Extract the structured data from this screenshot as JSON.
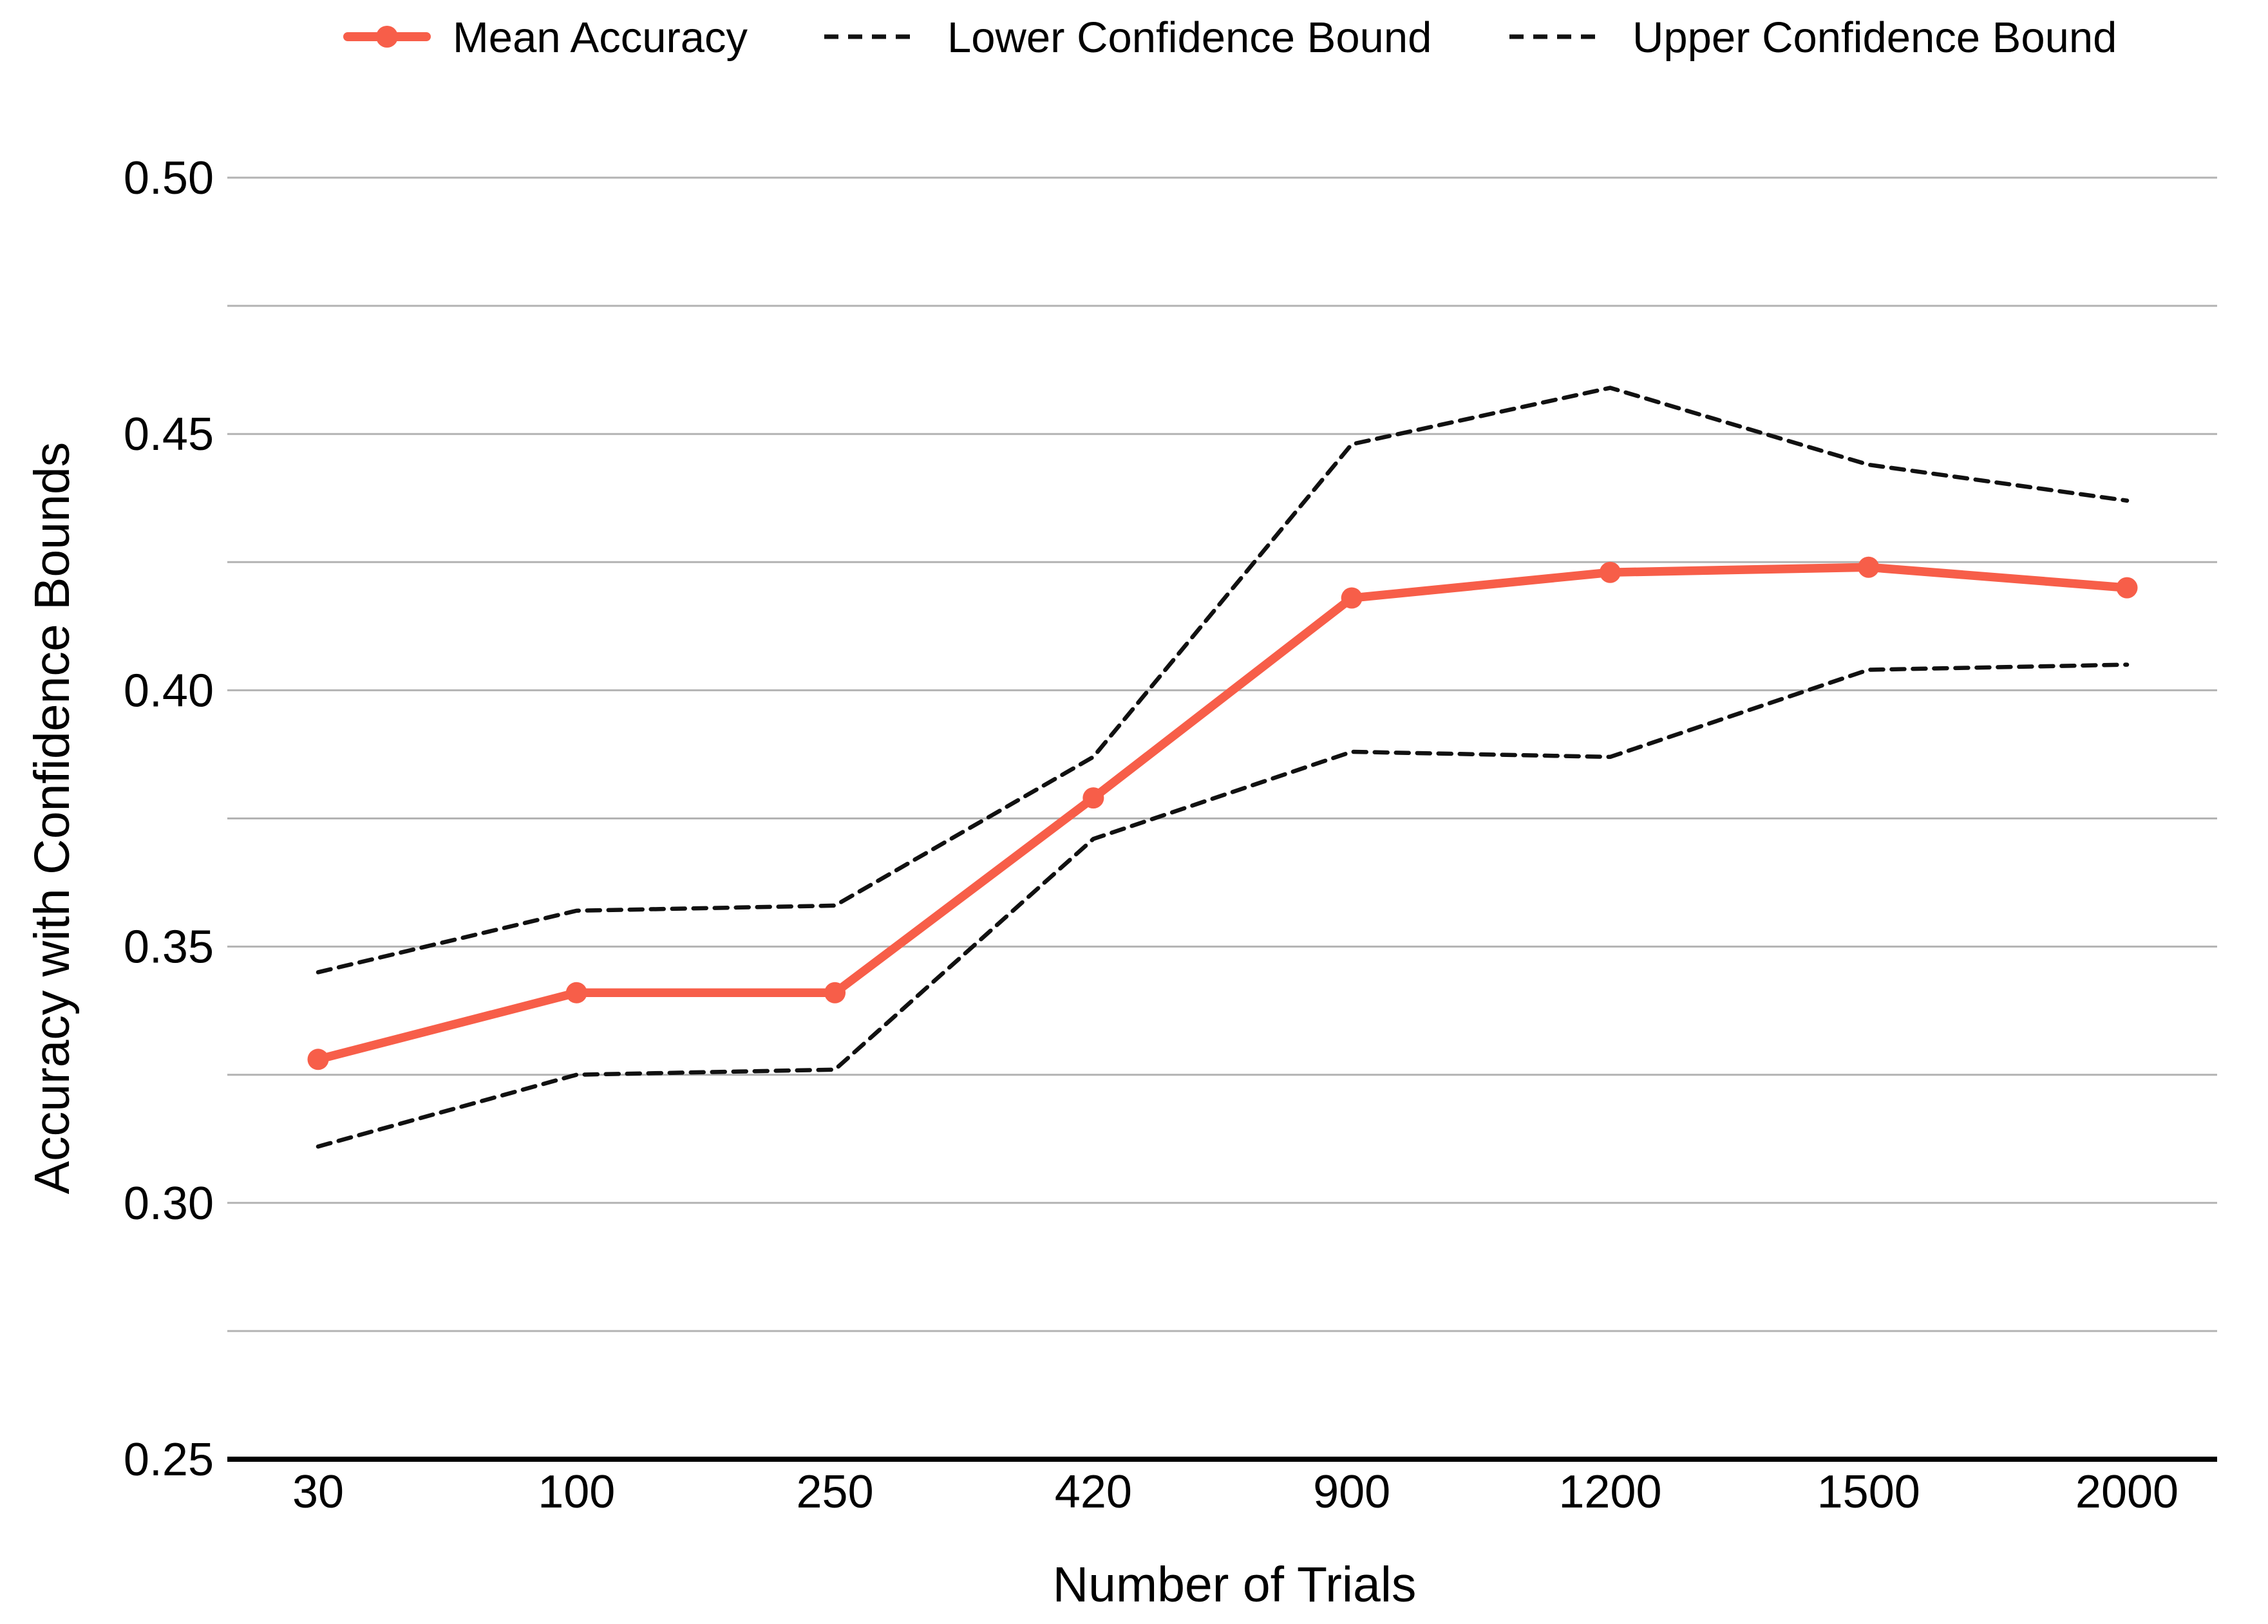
{
  "chart_data": {
    "type": "line",
    "title": "",
    "xlabel": "Number of Trials",
    "ylabel": "Accuracy with Confidence Bounds",
    "categories": [
      "30",
      "100",
      "250",
      "420",
      "900",
      "1200",
      "1500",
      "2000"
    ],
    "y_ticks": [
      "0.25",
      "0.30",
      "0.35",
      "0.40",
      "0.45",
      "0.50"
    ],
    "ylim": [
      0.25,
      0.5
    ],
    "grid_step": 0.025,
    "grid": true,
    "legend_position": "top",
    "series": [
      {
        "name": "Mean Accuracy",
        "style": "solid",
        "marker": true,
        "color": "#f75e49",
        "values": [
          0.328,
          0.341,
          0.341,
          0.379,
          0.418,
          0.423,
          0.424,
          0.42
        ]
      },
      {
        "name": "Lower Confidence Bound",
        "style": "dashed",
        "marker": false,
        "color": "#111111",
        "values": [
          0.311,
          0.325,
          0.326,
          0.371,
          0.388,
          0.387,
          0.404,
          0.405
        ]
      },
      {
        "name": "Upper Confidence Bound",
        "style": "dashed",
        "marker": false,
        "color": "#111111",
        "values": [
          0.345,
          0.357,
          0.358,
          0.387,
          0.448,
          0.459,
          0.444,
          0.437
        ]
      }
    ]
  },
  "colors": {
    "accent": "#f75e49",
    "gridline": "#b3b3b3",
    "axis_line": "#000000",
    "text": "#000000",
    "background": "#ffffff"
  }
}
